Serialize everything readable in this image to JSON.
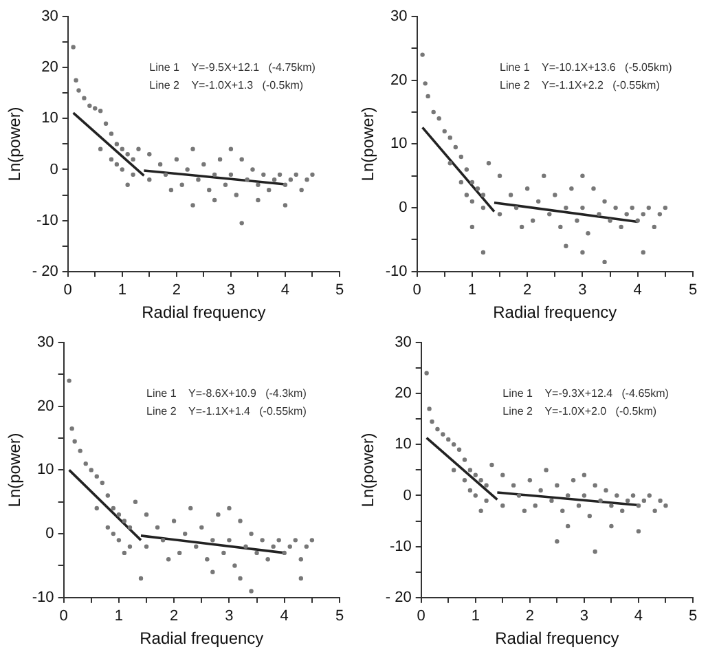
{
  "chart_data": [
    {
      "type": "scatter",
      "xlabel": "Radial frequency",
      "ylabel": "Ln(power)",
      "annotations": [
        "Line 1    Y=-9.5X+12.1   (-4.75km)",
        "Line 2    Y=-1.0X+1.3   (-0.5km)"
      ],
      "xlim": [
        0,
        5
      ],
      "xticks": [
        0,
        {
          "value": 0.5,
          "label": null
        },
        1,
        {
          "value": 1.5,
          "label": null
        },
        2,
        {
          "value": 2.5,
          "label": null
        },
        3,
        {
          "value": 3.5,
          "label": null
        },
        4,
        {
          "value": 4.5,
          "label": null
        },
        5
      ],
      "ylim": [
        -20,
        30
      ],
      "yticks": [
        {
          "value": -20,
          "label": "- 20"
        },
        {
          "value": -15,
          "label": null
        },
        -10,
        {
          "value": -5,
          "label": null
        },
        0,
        {
          "value": 5,
          "label": null
        },
        10,
        {
          "value": 15,
          "label": null
        },
        20,
        {
          "value": 25,
          "label": null
        },
        30
      ],
      "series": [
        {
          "type": "scatter",
          "marker": "circle",
          "color": "#777777",
          "x": [
            0.1,
            0.15,
            0.2,
            0.3,
            0.4,
            0.5,
            0.6,
            0.7,
            0.8,
            0.9,
            1.0,
            1.1,
            1.2,
            0.6,
            0.8,
            1.0,
            1.2,
            1.3,
            1.5,
            1.5,
            1.7,
            1.8,
            1.9,
            2.0,
            2.1,
            2.2,
            2.3,
            2.4,
            2.5,
            2.6,
            2.7,
            2.8,
            2.9,
            3.0,
            3.0,
            3.1,
            3.2,
            3.3,
            3.4,
            3.5,
            3.6,
            3.7,
            3.8,
            3.9,
            4.0,
            4.1,
            4.2,
            4.3,
            4.4,
            4.5,
            2.3,
            3.2,
            1.1,
            0.9,
            2.7,
            3.5,
            4.0
          ],
          "values": [
            24,
            17.5,
            15.5,
            14,
            12.5,
            12,
            11.5,
            9,
            7,
            5,
            4,
            3,
            2,
            4,
            2,
            0,
            -1,
            4,
            3,
            -2,
            1,
            -1,
            -4,
            2,
            -3,
            0,
            4,
            -2,
            1,
            -4,
            -1,
            2,
            -3,
            4,
            -1,
            -5,
            2,
            -2,
            0,
            -3,
            -1,
            -4,
            -2,
            -1,
            -3,
            -2,
            -1,
            -4,
            -2,
            -1,
            -7,
            -10.5,
            -3,
            1,
            -6,
            -6,
            -7
          ]
        },
        {
          "type": "line",
          "marker": "none",
          "color": "#222222",
          "x": [
            0.1,
            1.4
          ],
          "values": [
            11.1,
            -1.2
          ]
        },
        {
          "type": "line",
          "marker": "none",
          "color": "#222222",
          "x": [
            1.4,
            4.0
          ],
          "values": [
            -0.2,
            -2.9
          ]
        }
      ]
    },
    {
      "type": "scatter",
      "xlabel": "Radial frequency",
      "ylabel": "Ln(power)",
      "annotations": [
        "Line 1    Y=-10.1X+13.6   (-5.05km)",
        "Line 2    Y=-1.1X+2.2   (-0.55km)"
      ],
      "xlim": [
        0,
        5
      ],
      "xticks": [
        0,
        {
          "value": 0.5,
          "label": null
        },
        1,
        {
          "value": 1.5,
          "label": null
        },
        2,
        {
          "value": 2.5,
          "label": null
        },
        3,
        {
          "value": 3.5,
          "label": null
        },
        4,
        {
          "value": 4.5,
          "label": null
        },
        5
      ],
      "ylim": [
        -10,
        30
      ],
      "yticks": [
        -10,
        {
          "value": -5,
          "label": null
        },
        0,
        {
          "value": 5,
          "label": null
        },
        10,
        {
          "value": 15,
          "label": null
        },
        20,
        {
          "value": 25,
          "label": null
        },
        30
      ],
      "series": [
        {
          "type": "scatter",
          "marker": "circle",
          "color": "#777777",
          "x": [
            0.1,
            0.15,
            0.2,
            0.3,
            0.4,
            0.5,
            0.6,
            0.7,
            0.8,
            0.9,
            1.0,
            1.1,
            1.2,
            0.6,
            0.8,
            1.0,
            1.2,
            1.3,
            1.5,
            1.5,
            1.7,
            1.8,
            1.9,
            2.0,
            2.1,
            2.2,
            2.3,
            2.4,
            2.5,
            2.6,
            2.7,
            2.8,
            2.9,
            3.0,
            3.0,
            3.1,
            3.2,
            3.3,
            3.4,
            3.5,
            3.6,
            3.7,
            3.8,
            3.9,
            4.0,
            4.1,
            4.2,
            4.3,
            4.4,
            4.5,
            1.2,
            3.4,
            1.0,
            0.9,
            2.7,
            3.0,
            4.1
          ],
          "values": [
            24,
            19.5,
            17.5,
            15,
            14,
            12,
            11,
            9.5,
            8,
            6,
            4,
            3,
            2,
            7,
            4,
            1,
            0,
            7,
            5,
            -1,
            2,
            0,
            -3,
            3,
            -2,
            1,
            5,
            -1,
            2,
            -3,
            0,
            3,
            -2,
            5,
            0,
            -4,
            3,
            -1,
            1,
            -2,
            0,
            -3,
            -1,
            0,
            -2,
            -1,
            0,
            -3,
            -1,
            0,
            -7,
            -8.5,
            -3,
            2,
            -6,
            -7,
            -7
          ]
        },
        {
          "type": "line",
          "marker": "none",
          "color": "#222222",
          "x": [
            0.1,
            1.4
          ],
          "values": [
            12.6,
            -0.6
          ]
        },
        {
          "type": "line",
          "marker": "none",
          "color": "#222222",
          "x": [
            1.4,
            4.0
          ],
          "values": [
            0.8,
            -2.2
          ]
        }
      ]
    },
    {
      "type": "scatter",
      "xlabel": "Radial frequency",
      "ylabel": "Ln(power)",
      "annotations": [
        "Line 1    Y=-8.6X+10.9   (-4.3km)",
        "Line 2    Y=-1.1X+1.4   (-0.55km)"
      ],
      "xlim": [
        0,
        5
      ],
      "xticks": [
        0,
        {
          "value": 0.5,
          "label": null
        },
        1,
        {
          "value": 1.5,
          "label": null
        },
        2,
        {
          "value": 2.5,
          "label": null
        },
        3,
        {
          "value": 3.5,
          "label": null
        },
        4,
        {
          "value": 4.5,
          "label": null
        },
        5
      ],
      "ylim": [
        -10,
        30
      ],
      "yticks": [
        -10,
        {
          "value": -5,
          "label": null
        },
        0,
        {
          "value": 5,
          "label": null
        },
        10,
        {
          "value": 15,
          "label": null
        },
        20,
        {
          "value": 25,
          "label": null
        },
        30
      ],
      "series": [
        {
          "type": "scatter",
          "marker": "circle",
          "color": "#777777",
          "x": [
            0.1,
            0.15,
            0.2,
            0.3,
            0.4,
            0.5,
            0.6,
            0.7,
            0.8,
            0.9,
            1.0,
            1.1,
            1.2,
            0.6,
            0.8,
            1.0,
            1.2,
            1.3,
            1.5,
            1.5,
            1.7,
            1.8,
            1.9,
            2.0,
            2.1,
            2.2,
            2.3,
            2.4,
            2.5,
            2.6,
            2.7,
            2.8,
            2.9,
            3.0,
            3.0,
            3.1,
            3.2,
            3.3,
            3.4,
            3.5,
            3.6,
            3.7,
            3.8,
            3.9,
            4.0,
            4.1,
            4.2,
            4.3,
            4.4,
            4.5,
            1.4,
            3.4,
            1.1,
            0.9,
            2.7,
            3.2,
            4.3
          ],
          "values": [
            24,
            16.5,
            14.5,
            13,
            11,
            10,
            9,
            8,
            6,
            4,
            3,
            2,
            1,
            4,
            1,
            -1,
            -2,
            5,
            3,
            -2,
            1,
            -1,
            -4,
            2,
            -3,
            0,
            4,
            -2,
            1,
            -4,
            -1,
            3,
            -3,
            4,
            -1,
            -5,
            2,
            -2,
            0,
            -3,
            -1,
            -4,
            -2,
            -1,
            -3,
            -2,
            -1,
            -4,
            -2,
            -1,
            -7,
            -9,
            -3,
            0,
            -6,
            -7,
            -7
          ]
        },
        {
          "type": "line",
          "marker": "none",
          "color": "#222222",
          "x": [
            0.1,
            1.4
          ],
          "values": [
            10.0,
            -1.0
          ]
        },
        {
          "type": "line",
          "marker": "none",
          "color": "#222222",
          "x": [
            1.4,
            4.0
          ],
          "values": [
            -0.3,
            -3.0
          ]
        }
      ]
    },
    {
      "type": "scatter",
      "xlabel": "Radial frequency",
      "ylabel": "Ln(power)",
      "annotations": [
        "Line 1    Y=-9.3X+12.4   (-4.65km)",
        "Line 2    Y=-1.0X+2.0   (-0.5km)"
      ],
      "xlim": [
        0,
        5
      ],
      "xticks": [
        0,
        {
          "value": 0.5,
          "label": null
        },
        1,
        {
          "value": 1.5,
          "label": null
        },
        2,
        {
          "value": 2.5,
          "label": null
        },
        3,
        {
          "value": 3.5,
          "label": null
        },
        4,
        {
          "value": 4.5,
          "label": null
        },
        5
      ],
      "ylim": [
        -20,
        30
      ],
      "yticks": [
        {
          "value": -20,
          "label": "- 20"
        },
        {
          "value": -15,
          "label": null
        },
        -10,
        {
          "value": -5,
          "label": null
        },
        0,
        {
          "value": 5,
          "label": null
        },
        10,
        {
          "value": 15,
          "label": null
        },
        20,
        {
          "value": 25,
          "label": null
        },
        30
      ],
      "series": [
        {
          "type": "scatter",
          "marker": "circle",
          "color": "#777777",
          "x": [
            0.1,
            0.15,
            0.2,
            0.3,
            0.4,
            0.5,
            0.6,
            0.7,
            0.8,
            0.9,
            1.0,
            1.1,
            1.2,
            0.6,
            0.8,
            1.0,
            1.2,
            1.3,
            1.5,
            1.5,
            1.7,
            1.8,
            1.9,
            2.0,
            2.1,
            2.2,
            2.3,
            2.4,
            2.5,
            2.6,
            2.7,
            2.8,
            2.9,
            3.0,
            3.0,
            3.1,
            3.2,
            3.3,
            3.4,
            3.5,
            3.6,
            3.7,
            3.8,
            3.9,
            4.0,
            4.1,
            4.2,
            4.3,
            4.4,
            4.5,
            2.5,
            3.2,
            1.1,
            0.9,
            2.7,
            3.5,
            4.0
          ],
          "values": [
            24,
            17,
            14.5,
            13,
            12,
            11,
            10,
            9,
            7,
            5,
            4,
            3,
            2,
            5,
            3,
            0,
            -1,
            6,
            4,
            -2,
            2,
            0,
            -3,
            3,
            -2,
            1,
            5,
            -1,
            2,
            -3,
            0,
            3,
            -2,
            4,
            0,
            -4,
            2,
            -1,
            1,
            -2,
            0,
            -3,
            -1,
            0,
            -2,
            -1,
            0,
            -3,
            -1,
            -2,
            -9,
            -11,
            -3,
            1,
            -6,
            -6,
            -7
          ]
        },
        {
          "type": "line",
          "marker": "none",
          "color": "#222222",
          "x": [
            0.1,
            1.4
          ],
          "values": [
            11.3,
            -0.8
          ]
        },
        {
          "type": "line",
          "marker": "none",
          "color": "#222222",
          "x": [
            1.4,
            4.0
          ],
          "values": [
            0.6,
            -1.9
          ]
        }
      ]
    }
  ]
}
